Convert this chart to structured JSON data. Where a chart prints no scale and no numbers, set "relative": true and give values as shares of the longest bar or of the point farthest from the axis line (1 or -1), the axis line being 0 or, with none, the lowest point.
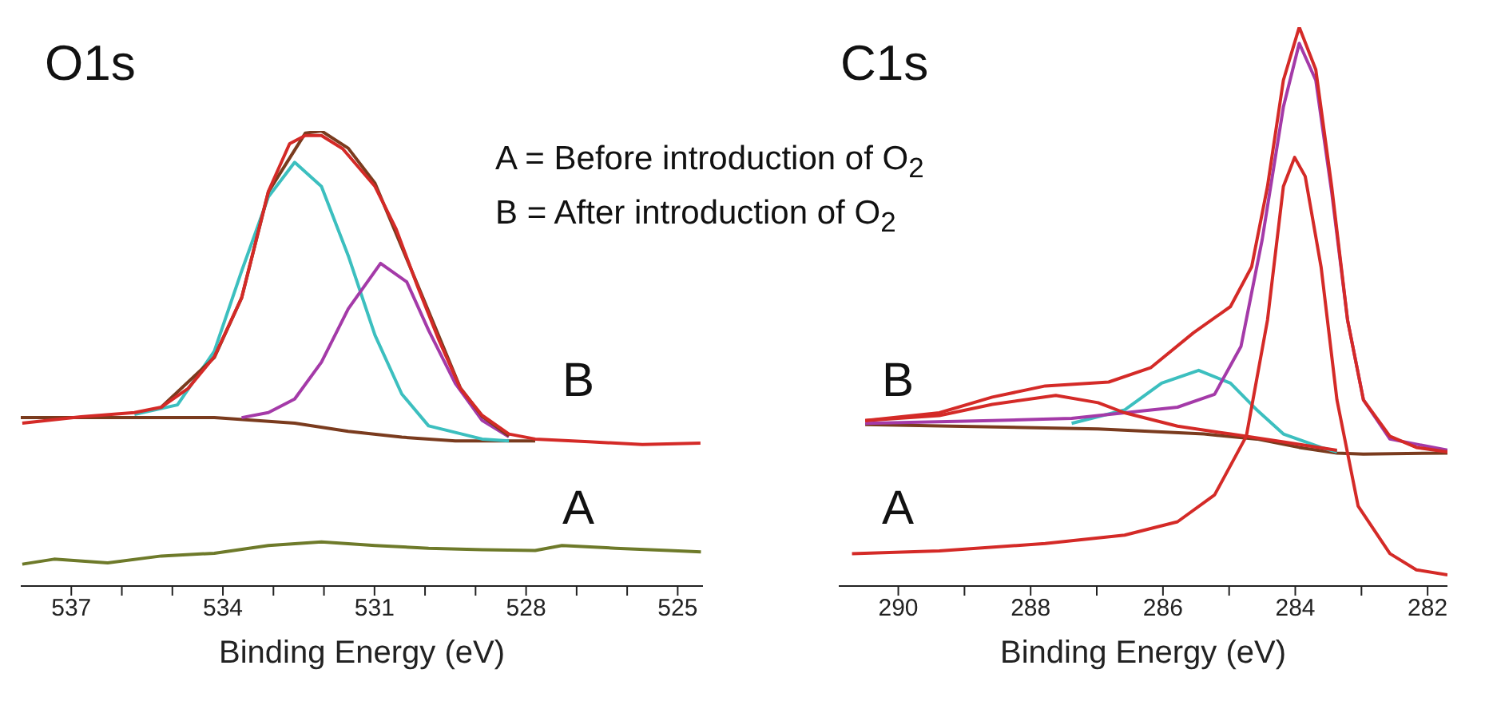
{
  "chart_data": [
    {
      "type": "line",
      "title": "O1s",
      "xlabel": "Binding Energy (eV)",
      "relative": true,
      "tick_labels": "x",
      "xlim": [
        538,
        524.5
      ],
      "xticks": [
        537,
        {
          "value": 536,
          "label": null
        },
        {
          "value": 535,
          "label": null
        },
        534,
        {
          "value": 533,
          "label": null
        },
        {
          "value": 532,
          "label": null
        },
        531,
        {
          "value": 530,
          "label": null
        },
        {
          "value": 529,
          "label": null
        },
        528,
        {
          "value": 527,
          "label": null
        },
        {
          "value": 526,
          "label": null
        },
        525
      ],
      "annotations": [
        "A = Before introduction of O$_{2}$",
        "B = After introduction of O$_{2}$",
        "B",
        "A"
      ],
      "series": [
        {
          "color": "#7a3b1e",
          "x": [
            538,
            534.17,
            532.58,
            531.52,
            530.46,
            529.4,
            527.82
          ],
          "values": [
            0.37,
            0.37,
            0.358,
            0.34,
            0.327,
            0.319,
            0.319
          ]
        },
        {
          "color": "#3cbfbf",
          "x": [
            535.75,
            534.9,
            534.17,
            533.63,
            533.1,
            532.58,
            532.05,
            531.52,
            530.99,
            530.46,
            529.93,
            528.87,
            528.34
          ],
          "values": [
            0.377,
            0.398,
            0.516,
            0.692,
            0.855,
            0.931,
            0.878,
            0.726,
            0.551,
            0.422,
            0.352,
            0.323,
            0.319
          ]
        },
        {
          "color": "#a43aa8",
          "x": [
            533.63,
            533.1,
            532.58,
            532.05,
            531.52,
            530.88,
            530.36,
            529.93,
            529.4,
            528.87,
            528.34
          ],
          "values": [
            0.37,
            0.381,
            0.411,
            0.492,
            0.609,
            0.709,
            0.668,
            0.562,
            0.445,
            0.364,
            0.328
          ]
        },
        {
          "color": "#7a3b1e",
          "x": [
            535.22,
            534.17,
            533.63,
            533.1,
            532.37,
            532.05,
            531.52,
            530.99,
            530.14,
            529.3,
            528.87,
            528.34
          ],
          "values": [
            0.393,
            0.502,
            0.633,
            0.866,
            0.995,
            1.0,
            0.962,
            0.885,
            0.66,
            0.435,
            0.373,
            0.33
          ]
        },
        {
          "color": "#d42a27",
          "x": [
            537.97,
            536.81,
            535.75,
            535.22,
            534.69,
            534.17,
            533.63,
            533.1,
            532.68,
            532.37,
            532.05,
            531.63,
            530.99,
            530.57,
            530.14,
            529.72,
            529.3,
            528.87,
            528.34,
            527.82,
            526.76,
            525.7,
            524.55
          ],
          "values": [
            0.358,
            0.372,
            0.381,
            0.393,
            0.434,
            0.504,
            0.633,
            0.867,
            0.972,
            0.99,
            0.99,
            0.961,
            0.878,
            0.784,
            0.656,
            0.539,
            0.434,
            0.375,
            0.334,
            0.323,
            0.317,
            0.311,
            0.314
          ]
        },
        {
          "color": "#6e7a2a",
          "x": [
            537.97,
            537.34,
            536.28,
            535.22,
            534.17,
            533.1,
            532.05,
            530.99,
            529.93,
            528.87,
            527.82,
            527.29,
            526.23,
            525.17,
            524.54
          ],
          "values": [
            0.048,
            0.059,
            0.051,
            0.066,
            0.072,
            0.089,
            0.097,
            0.089,
            0.083,
            0.08,
            0.078,
            0.089,
            0.083,
            0.078,
            0.075
          ]
        }
      ]
    },
    {
      "type": "line",
      "title": "C1s",
      "xlabel": "Binding Energy (eV)",
      "relative": true,
      "tick_labels": "x",
      "xlim": [
        290.9,
        281.7
      ],
      "xticks": [
        290,
        {
          "value": 289,
          "label": null
        },
        288,
        {
          "value": 287,
          "label": null
        },
        286,
        {
          "value": 285,
          "label": null
        },
        284,
        {
          "value": 283,
          "label": null
        },
        282
      ],
      "annotations": [
        "B",
        "A"
      ],
      "series": [
        {
          "color": "#7a3b1e",
          "x": [
            290.5,
            286.98,
            285.38,
            284.58,
            283.94,
            283.37,
            282.97,
            281.7
          ],
          "values": [
            0.289,
            0.281,
            0.272,
            0.263,
            0.248,
            0.238,
            0.236,
            0.238
          ]
        },
        {
          "color": "#3cbfbf",
          "x": [
            287.38,
            286.58,
            286.02,
            285.46,
            284.98,
            284.58,
            284.18,
            283.61,
            283.37
          ],
          "values": [
            0.291,
            0.315,
            0.363,
            0.386,
            0.363,
            0.315,
            0.272,
            0.248,
            0.24
          ]
        },
        {
          "color": "#a43aa8",
          "x": [
            290.5,
            288.58,
            287.38,
            286.58,
            285.78,
            285.22,
            284.82,
            284.5,
            284.18,
            283.94,
            283.69,
            283.45,
            283.21,
            282.97,
            282.57,
            281.7
          ],
          "values": [
            0.291,
            0.296,
            0.3,
            0.31,
            0.32,
            0.343,
            0.429,
            0.62,
            0.857,
            0.971,
            0.905,
            0.705,
            0.476,
            0.333,
            0.263,
            0.243
          ]
        },
        {
          "color": "#d42a27",
          "x": [
            290.5,
            289.38,
            288.58,
            287.62,
            286.98,
            286.58,
            285.78,
            284.98,
            284.18,
            283.37
          ],
          "values": [
            0.296,
            0.305,
            0.325,
            0.341,
            0.328,
            0.31,
            0.286,
            0.272,
            0.258,
            0.243
          ]
        },
        {
          "color": "#d42a27",
          "x": [
            290.5,
            289.38,
            288.58,
            287.78,
            286.82,
            286.18,
            285.54,
            284.98,
            284.66,
            284.42,
            284.18,
            283.94,
            283.69,
            283.45,
            283.21,
            282.97,
            282.57,
            282.17,
            281.7
          ],
          "values": [
            0.296,
            0.31,
            0.338,
            0.358,
            0.365,
            0.391,
            0.453,
            0.5,
            0.571,
            0.715,
            0.905,
            1.0,
            0.924,
            0.715,
            0.476,
            0.333,
            0.268,
            0.248,
            0.24
          ]
        },
        {
          "color": "#d42a27",
          "x": [
            290.7,
            289.38,
            287.78,
            286.58,
            285.78,
            285.22,
            284.74,
            284.42,
            284.18,
            284.01,
            283.85,
            283.61,
            283.37,
            283.05,
            282.57,
            282.17,
            281.7
          ],
          "values": [
            0.058,
            0.063,
            0.076,
            0.091,
            0.115,
            0.163,
            0.268,
            0.476,
            0.715,
            0.767,
            0.733,
            0.571,
            0.333,
            0.143,
            0.058,
            0.029,
            0.02
          ]
        }
      ]
    }
  ]
}
